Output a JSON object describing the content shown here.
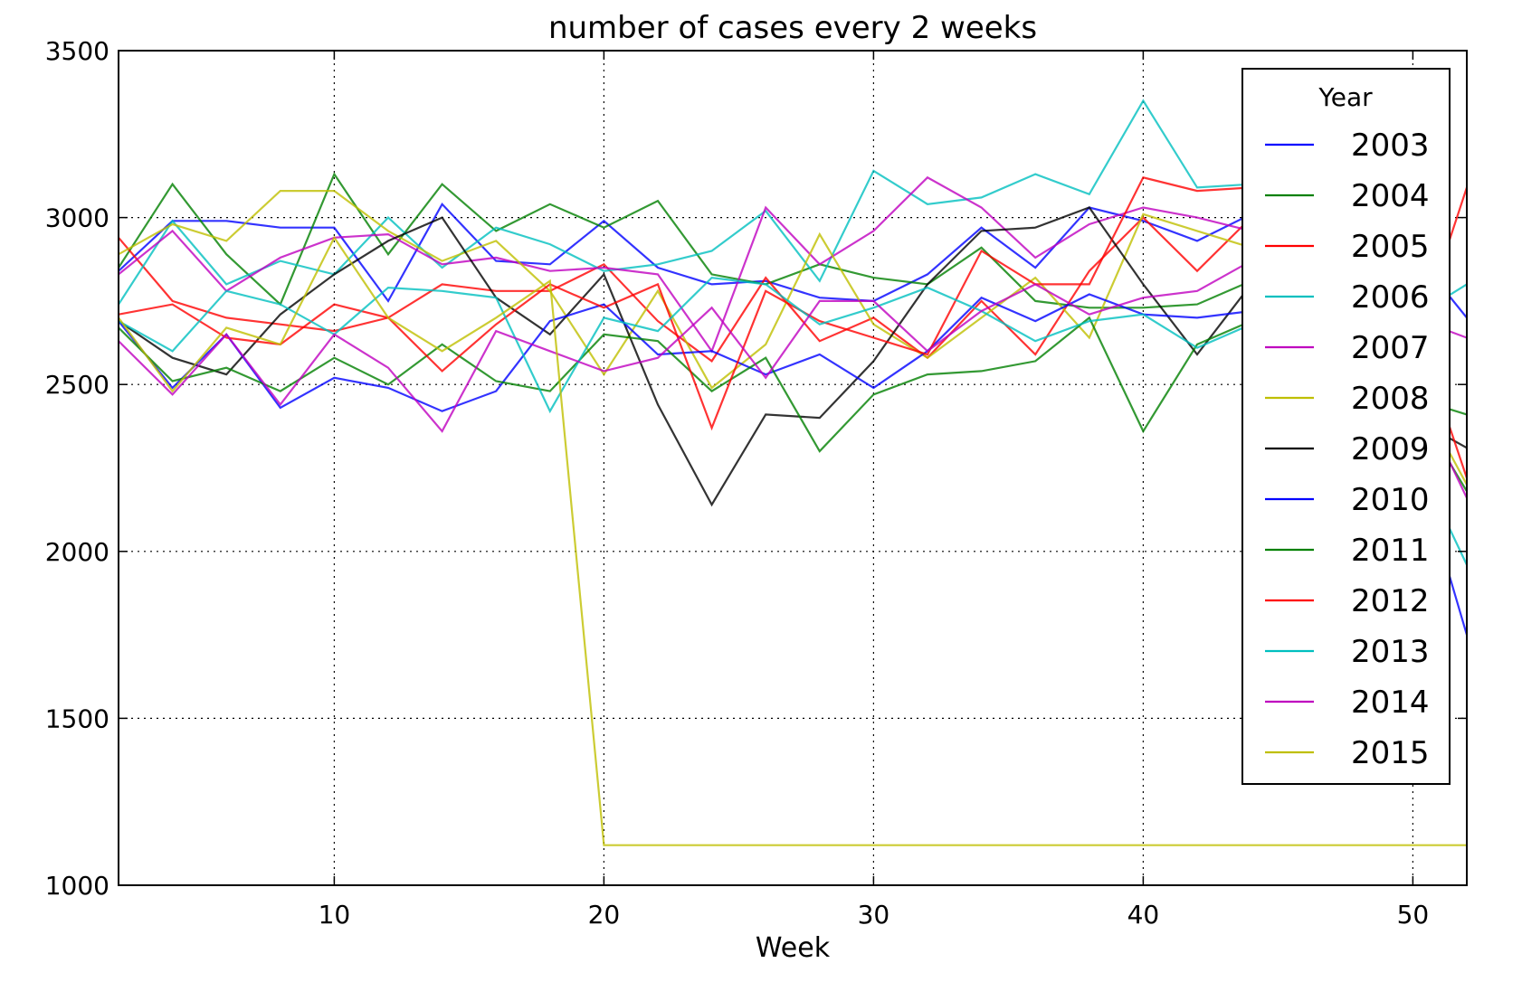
{
  "chart_data": {
    "type": "line",
    "title": "number of cases every 2 weeks",
    "xlabel": "Week",
    "ylabel": "",
    "xlim": [
      2,
      52
    ],
    "ylim": [
      1000,
      3500
    ],
    "xticks": [
      10,
      20,
      30,
      40,
      50
    ],
    "yticks": [
      1000,
      1500,
      2000,
      2500,
      3000,
      3500
    ],
    "grid": true,
    "legend": {
      "title": "Year",
      "placement": "top-right"
    },
    "x": [
      2,
      4,
      6,
      8,
      10,
      12,
      14,
      16,
      18,
      20,
      22,
      24,
      26,
      28,
      30,
      32,
      34,
      36,
      38,
      40,
      42,
      44,
      46,
      48,
      50,
      52
    ],
    "series": [
      {
        "name": "2003",
        "color": "#0000ff",
        "values": [
          2840,
          2990,
          2990,
          2970,
          2970,
          2750,
          3040,
          2870,
          2860,
          2990,
          2850,
          2800,
          2810,
          2760,
          2750,
          2830,
          2970,
          2850,
          3030,
          2990,
          2930,
          3010,
          2990,
          2950,
          2900,
          2700
        ]
      },
      {
        "name": "2004",
        "color": "#008000",
        "values": [
          2850,
          3100,
          2890,
          2740,
          3130,
          2890,
          3100,
          2960,
          3040,
          2970,
          3050,
          2830,
          2800,
          2860,
          2820,
          2800,
          2910,
          2750,
          2730,
          2730,
          2740,
          2810,
          2700,
          2600,
          2460,
          2410
        ]
      },
      {
        "name": "2005",
        "color": "#ff0000",
        "values": [
          2940,
          2750,
          2700,
          2680,
          2660,
          2700,
          2800,
          2780,
          2780,
          2860,
          2690,
          2570,
          2820,
          2630,
          2700,
          2580,
          2750,
          2590,
          2840,
          3000,
          2840,
          3000,
          2950,
          2900,
          2600,
          3090
        ]
      },
      {
        "name": "2006",
        "color": "#00bfbf",
        "values": [
          2740,
          2990,
          2800,
          2870,
          2830,
          3000,
          2850,
          2970,
          2920,
          2840,
          2860,
          2900,
          3020,
          2810,
          3140,
          3040,
          3060,
          3130,
          3070,
          3350,
          3090,
          3100,
          3000,
          2800,
          2700,
          2800
        ]
      },
      {
        "name": "2007",
        "color": "#bf00bf",
        "values": [
          2830,
          2960,
          2780,
          2880,
          2940,
          2950,
          2860,
          2880,
          2840,
          2850,
          2830,
          2600,
          3030,
          2860,
          2960,
          3120,
          3030,
          2880,
          2980,
          3030,
          3000,
          2960,
          2900,
          2800,
          2700,
          2640
        ]
      },
      {
        "name": "2008",
        "color": "#bfbf00",
        "values": [
          2890,
          2980,
          2930,
          3080,
          3080,
          2960,
          2870,
          2930,
          2780,
          2530,
          2780,
          2490,
          2620,
          2950,
          2680,
          2580,
          2700,
          2820,
          2640,
          3010,
          2960,
          2910,
          2850,
          2750,
          2500,
          2200
        ]
      },
      {
        "name": "2009",
        "color": "#000000",
        "values": [
          2690,
          2580,
          2530,
          2710,
          2830,
          2930,
          3000,
          2760,
          2650,
          2830,
          2440,
          2140,
          2410,
          2400,
          2570,
          2800,
          2960,
          2970,
          3030,
          2800,
          2590,
          2800,
          2750,
          2650,
          2400,
          2310
        ]
      },
      {
        "name": "2010",
        "color": "#0000ff",
        "values": [
          2690,
          2490,
          2650,
          2430,
          2520,
          2490,
          2420,
          2480,
          2690,
          2740,
          2590,
          2600,
          2530,
          2590,
          2490,
          2600,
          2760,
          2690,
          2770,
          2710,
          2700,
          2720,
          2650,
          2500,
          2300,
          1750
        ]
      },
      {
        "name": "2011",
        "color": "#008000",
        "values": [
          2670,
          2510,
          2550,
          2480,
          2580,
          2500,
          2620,
          2510,
          2480,
          2650,
          2630,
          2480,
          2580,
          2300,
          2470,
          2530,
          2540,
          2570,
          2700,
          2360,
          2620,
          2690,
          2600,
          2500,
          2450,
          2180
        ]
      },
      {
        "name": "2012",
        "color": "#ff0000",
        "values": [
          2710,
          2740,
          2640,
          2620,
          2740,
          2700,
          2540,
          2680,
          2800,
          2730,
          2800,
          2370,
          2780,
          2690,
          2640,
          2590,
          2900,
          2800,
          2800,
          3120,
          3080,
          3090,
          3000,
          2900,
          2700,
          2220
        ]
      },
      {
        "name": "2013",
        "color": "#00bfbf",
        "values": [
          2690,
          2600,
          2780,
          2740,
          2650,
          2790,
          2780,
          2760,
          2420,
          2700,
          2660,
          2820,
          2800,
          2680,
          2730,
          2790,
          2720,
          2630,
          2690,
          2710,
          2610,
          2680,
          2600,
          2500,
          2300,
          1960
        ]
      },
      {
        "name": "2014",
        "color": "#bf00bf",
        "values": [
          2630,
          2470,
          2650,
          2440,
          2650,
          2550,
          2360,
          2660,
          2600,
          2540,
          2580,
          2730,
          2520,
          2750,
          2750,
          2600,
          2720,
          2800,
          2710,
          2760,
          2780,
          2870,
          2800,
          2700,
          2500,
          2160
        ]
      },
      {
        "name": "2015",
        "color": "#bfbf00",
        "values": [
          2700,
          2480,
          2670,
          2620,
          2940,
          2700,
          2600,
          2700,
          2810,
          1120,
          1120,
          1120,
          1120,
          1120,
          1120,
          1120,
          1120,
          1120,
          1120,
          1120,
          1120,
          1120,
          1120,
          1120,
          1120,
          1120
        ]
      }
    ]
  }
}
